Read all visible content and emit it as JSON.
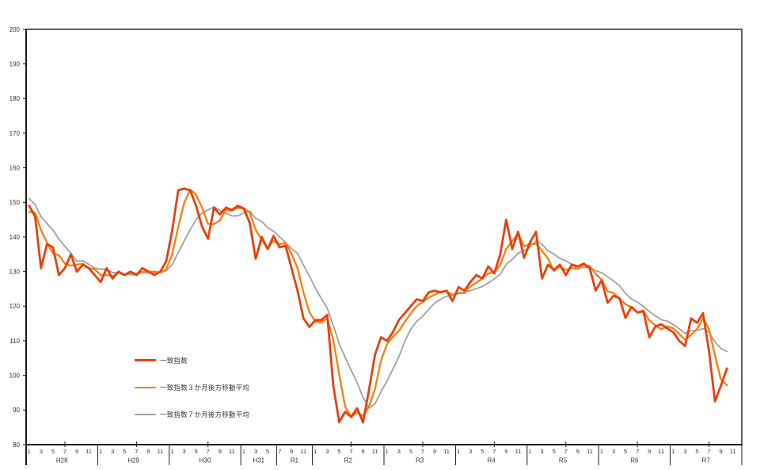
{
  "chart_data": {
    "type": "line",
    "title": "",
    "xlabel": "",
    "ylabel": "",
    "ylim": [
      80,
      200
    ],
    "ytick_step": 10,
    "grid": false,
    "legend_position": "inside-lower-left",
    "axis_color": "#1a1a1a",
    "label_color": "#333333",
    "years": [
      {
        "label": "H28",
        "months": 12,
        "first_month": 1
      },
      {
        "label": "H29",
        "months": 12,
        "first_month": 1
      },
      {
        "label": "H30",
        "months": 12,
        "first_month": 1
      },
      {
        "label": "H31",
        "months": 6,
        "first_month": 1
      },
      {
        "label": "R1",
        "months": 6,
        "first_month": 7
      },
      {
        "label": "R2",
        "months": 12,
        "first_month": 1
      },
      {
        "label": "R3",
        "months": 12,
        "first_month": 1
      },
      {
        "label": "R4",
        "months": 12,
        "first_month": 1
      },
      {
        "label": "R5",
        "months": 12,
        "first_month": 1
      },
      {
        "label": "R6",
        "months": 12,
        "first_month": 1
      },
      {
        "label": "R7",
        "months": 12,
        "first_month": 1
      }
    ],
    "series": [
      {
        "name": "一致指数",
        "color": "#e8400c",
        "line_width": 2.8,
        "values": [
          149,
          146,
          131,
          138,
          137,
          129,
          131,
          135,
          130,
          132,
          131,
          129,
          127,
          131,
          128,
          130,
          129,
          130,
          129,
          131,
          130,
          129,
          130,
          133,
          142,
          153.5,
          154,
          153.5,
          149,
          143,
          139.5,
          148.5,
          146.5,
          148.5,
          147.8,
          149,
          148.2,
          144,
          133.7,
          140,
          136.5,
          140.3,
          137,
          137.5,
          131,
          124.5,
          116.5,
          114,
          116,
          116,
          117.5,
          97,
          86.5,
          89.5,
          88,
          90.5,
          86.4,
          96,
          106,
          111,
          110,
          112.5,
          116,
          118,
          120,
          122,
          121.5,
          124,
          124.5,
          124,
          124.5,
          121.5,
          125.5,
          124.5,
          127,
          129,
          128,
          131.5,
          129.5,
          135,
          145,
          136.5,
          141.5,
          134,
          138.5,
          141.5,
          128,
          132,
          130.5,
          132,
          129,
          132,
          131.5,
          132.3,
          131,
          124.5,
          127.5,
          121,
          123,
          122.3,
          116.6,
          119.8,
          118.2,
          118.5,
          111,
          114.1,
          114.8,
          113.6,
          112.5,
          110,
          108.5,
          116.5,
          115.2,
          118,
          107,
          92.5,
          97,
          102
        ]
      },
      {
        "name": "一致指数３か月後方移動平均",
        "color": "#f08418",
        "line_width": 2.4,
        "values": [
          147.3,
          147,
          142,
          138.3,
          135.3,
          134.7,
          132.3,
          131.7,
          132,
          132.3,
          131,
          130.7,
          129,
          129,
          128.7,
          129.7,
          129,
          129.7,
          129.3,
          130,
          130,
          130,
          129.7,
          130.7,
          135,
          142.8,
          149.8,
          153.7,
          152.2,
          148.5,
          143.8,
          143.7,
          144.8,
          147.8,
          147.6,
          148.4,
          148.3,
          147.1,
          142,
          139.2,
          136.7,
          138.9,
          137.9,
          138.3,
          135.2,
          131,
          124,
          118.3,
          115.5,
          115.3,
          116.5,
          110.2,
          100.3,
          91,
          88,
          89.3,
          88.3,
          91,
          96.1,
          104.3,
          109,
          111.2,
          112.8,
          115.5,
          118,
          120,
          121.2,
          122.5,
          123.3,
          124.2,
          124.3,
          123.3,
          123.8,
          123.8,
          125.7,
          126.8,
          128,
          129.5,
          129.7,
          132,
          136.5,
          138.8,
          141,
          137.3,
          138,
          138,
          136,
          133.8,
          130.2,
          131.5,
          130.5,
          131,
          130.8,
          131.9,
          131.6,
          129.3,
          127.7,
          124.3,
          123.8,
          122.1,
          120.6,
          119.6,
          118.2,
          118.8,
          115.9,
          114.5,
          113.3,
          114.2,
          113.6,
          112,
          110.3,
          111.7,
          113.4,
          116.6,
          113.4,
          105.8,
          98.8,
          97.2
        ]
      },
      {
        "name": "一致指数７か月後方移動平均",
        "color": "#9c9c9c",
        "line_width": 1.7,
        "values": [
          151.1,
          149.4,
          145.9,
          143.9,
          142,
          139.4,
          137.3,
          135.3,
          133,
          133.1,
          132.1,
          131,
          130.7,
          130.7,
          129.7,
          129.7,
          129.3,
          129.1,
          129.1,
          129.7,
          129.6,
          129.7,
          129.7,
          130.3,
          132,
          135.5,
          138.8,
          142.1,
          145,
          146.9,
          147.8,
          148.7,
          147.7,
          146.9,
          146.1,
          146.1,
          146.9,
          147.5,
          145.4,
          144.5,
          142.7,
          141.7,
          140,
          138.4,
          136.6,
          135.3,
          131.9,
          128.7,
          125.2,
          122.2,
          119.4,
          114.5,
          109.1,
          105.2,
          101.5,
          97.9,
          93.6,
          90.6,
          91.8,
          95.3,
          98.3,
          101.8,
          105.4,
          109.9,
          113.4,
          115.6,
          117.1,
          119.1,
          120.9,
          122,
          122.9,
          123.1,
          123.6,
          124.1,
          124.5,
          125.1,
          125.7,
          126.7,
          127.9,
          129.2,
          132.1,
          133.5,
          135.3,
          136.1,
          137.1,
          138.9,
          137.9,
          136,
          135.1,
          133.8,
          133.1,
          132.1,
          130.7,
          131.3,
          131.2,
          130.3,
          129.7,
          128.5,
          127.3,
          125.9,
          123.7,
          122.1,
          121.2,
          119.9,
          118.5,
          117.2,
          116.1,
          115.7,
          114.7,
          113.5,
          112.1,
          112.9,
          113,
          113.5,
          112.5,
          109.7,
          107.8,
          106.9
        ]
      }
    ]
  }
}
